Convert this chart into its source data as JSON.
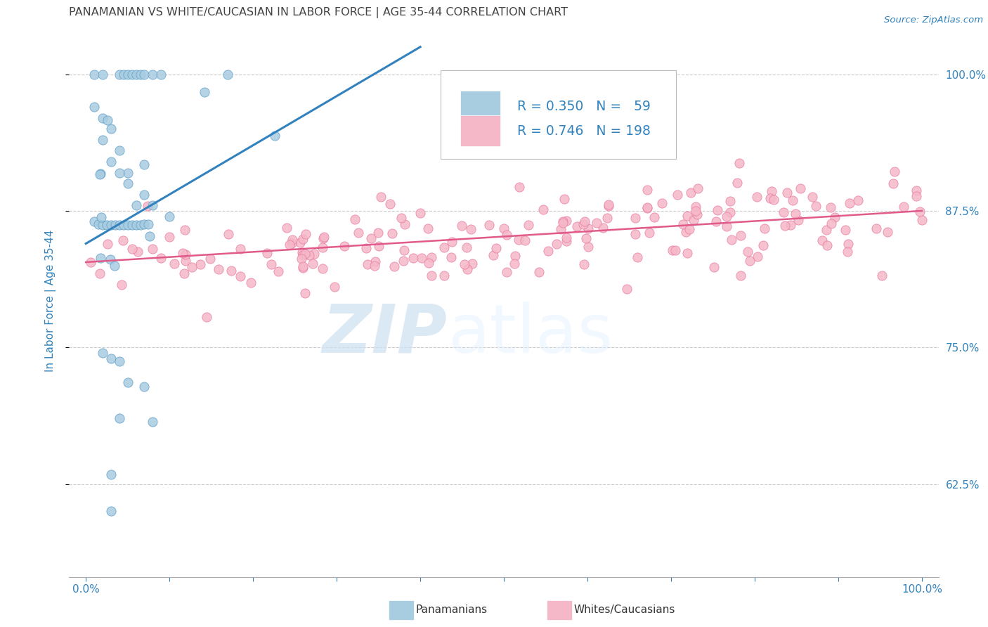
{
  "title": "PANAMANIAN VS WHITE/CAUCASIAN IN LABOR FORCE | AGE 35-44 CORRELATION CHART",
  "source": "Source: ZipAtlas.com",
  "ylabel": "In Labor Force | Age 35-44",
  "xlim": [
    -0.02,
    1.02
  ],
  "ylim": [
    0.54,
    1.045
  ],
  "yticks": [
    0.625,
    0.75,
    0.875,
    1.0
  ],
  "ytick_labels_right": [
    "62.5%",
    "75.0%",
    "87.5%",
    "100.0%"
  ],
  "blue_color": "#a8cce0",
  "blue_edge_color": "#5b9dc9",
  "pink_color": "#f5b8c8",
  "pink_edge_color": "#e87aa0",
  "trendline_blue": "#3182bd",
  "trendline_pink": "#e05a8a",
  "blue_trendline_x": [
    0.0,
    0.4
  ],
  "blue_trendline_y": [
    0.845,
    1.025
  ],
  "pink_trendline_x": [
    0.0,
    1.0
  ],
  "pink_trendline_y": [
    0.828,
    0.875
  ],
  "background_color": "#ffffff",
  "grid_color": "#cccccc",
  "title_color": "#444444",
  "axis_color": "#3182bd",
  "legend_color": "#3182bd",
  "label_dark": "#333333"
}
